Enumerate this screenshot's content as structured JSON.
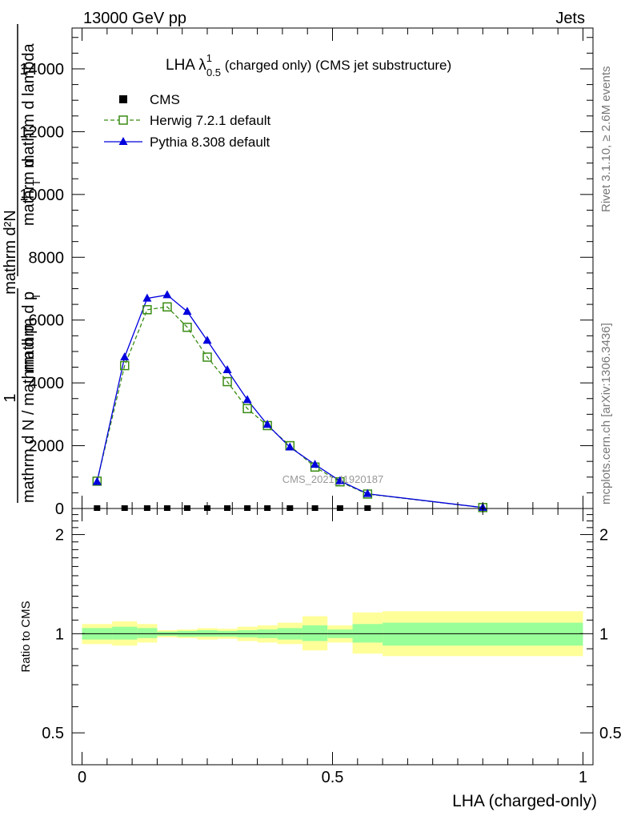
{
  "header": {
    "left": "13000 GeV pp",
    "right": "Jets"
  },
  "side_labels": {
    "rivet": "Rivet 3.1.10, ≥ 2.6M events",
    "mcplots": "mcplots.cern.ch [arXiv:1306.3436]"
  },
  "chart_data": [
    {
      "type": "line",
      "title_main": "LHA λ",
      "title_sup": "1",
      "title_sub": "0.5",
      "title_rest": " (charged only) (CMS jet substructure)",
      "ylabel_top": "1",
      "ylabel_overlap_1": "mathrm d",
      "ylabel_overlap_2": "N",
      "ylabel_overlap_3": "mathrm d p",
      "ylabel_overlap_4": "T",
      "ylabel_overlap_5": "mathrm d lambda",
      "ylabel_line1": "mathrm d N / mathrm d p",
      "ylabel_line1b": "T",
      "ylabel_line2": "mathrm d",
      "ylabel_line3": "mathrm d²N",
      "watermark": "CMS_2021_I1920187",
      "ylim": [
        0,
        15300
      ],
      "xlim": [
        -0.02,
        1.02
      ],
      "yticks": [
        0,
        2000,
        4000,
        6000,
        8000,
        10000,
        12000,
        14000
      ],
      "ytick_labels": [
        "0",
        "2000",
        "4000",
        "6000",
        "8000",
        "10000",
        "12000",
        "14000"
      ],
      "legend": [
        {
          "label": "CMS",
          "marker": "square-filled",
          "color": "#000000"
        },
        {
          "label": "Herwig 7.2.1 default",
          "marker": "square-open",
          "color": "#3a8c14"
        },
        {
          "label": "Pythia 8.308 default",
          "marker": "triangle",
          "color": "#0000dd"
        }
      ],
      "series": [
        {
          "name": "CMS",
          "x": [
            0.03,
            0.085,
            0.13,
            0.17,
            0.21,
            0.25,
            0.29,
            0.33,
            0.37,
            0.415,
            0.465,
            0.515,
            0.57
          ],
          "values": [
            0,
            0,
            0,
            0,
            0,
            0,
            0,
            0,
            0,
            0,
            0,
            0,
            0
          ]
        },
        {
          "name": "Herwig 7.2.1 default",
          "x": [
            0.03,
            0.085,
            0.13,
            0.17,
            0.21,
            0.25,
            0.29,
            0.33,
            0.37,
            0.415,
            0.465,
            0.515,
            0.57,
            0.8
          ],
          "values": [
            870,
            4550,
            6330,
            6420,
            5770,
            4820,
            4040,
            3180,
            2640,
            2000,
            1320,
            850,
            460,
            30
          ]
        },
        {
          "name": "Pythia 8.308 default",
          "x": [
            0.03,
            0.085,
            0.13,
            0.17,
            0.21,
            0.25,
            0.29,
            0.33,
            0.37,
            0.415,
            0.465,
            0.515,
            0.57,
            0.8
          ],
          "values": [
            850,
            4820,
            6690,
            6800,
            6270,
            5350,
            4410,
            3460,
            2670,
            1950,
            1400,
            880,
            470,
            30
          ]
        }
      ]
    },
    {
      "type": "area",
      "ylabel": "Ratio to CMS",
      "ylim": [
        0.4,
        2.4
      ],
      "log_scale": true,
      "yticks": [
        0.5,
        1,
        2
      ],
      "ytick_labels": [
        "0.5",
        "1",
        "2"
      ],
      "xlabel": "LHA (charged-only)",
      "xlim": [
        -0.02,
        1.02
      ],
      "xticks": [
        0,
        0.5,
        1
      ],
      "xtick_labels": [
        "0",
        "0.5",
        "1"
      ],
      "bins": [
        {
          "x_lo": 0.0,
          "x_hi": 0.06,
          "inner": [
            0.96,
            1.04
          ],
          "outer": [
            0.93,
            1.07
          ]
        },
        {
          "x_lo": 0.06,
          "x_hi": 0.11,
          "inner": [
            0.96,
            1.05
          ],
          "outer": [
            0.92,
            1.09
          ]
        },
        {
          "x_lo": 0.11,
          "x_hi": 0.15,
          "inner": [
            0.97,
            1.04
          ],
          "outer": [
            0.94,
            1.07
          ]
        },
        {
          "x_lo": 0.15,
          "x_hi": 0.19,
          "inner": [
            0.985,
            1.015
          ],
          "outer": [
            0.975,
            1.025
          ]
        },
        {
          "x_lo": 0.19,
          "x_hi": 0.23,
          "inner": [
            0.98,
            1.02
          ],
          "outer": [
            0.97,
            1.03
          ]
        },
        {
          "x_lo": 0.23,
          "x_hi": 0.27,
          "inner": [
            0.98,
            1.025
          ],
          "outer": [
            0.96,
            1.04
          ]
        },
        {
          "x_lo": 0.27,
          "x_hi": 0.31,
          "inner": [
            0.98,
            1.02
          ],
          "outer": [
            0.965,
            1.035
          ]
        },
        {
          "x_lo": 0.31,
          "x_hi": 0.35,
          "inner": [
            0.975,
            1.025
          ],
          "outer": [
            0.95,
            1.05
          ]
        },
        {
          "x_lo": 0.35,
          "x_hi": 0.39,
          "inner": [
            0.97,
            1.03
          ],
          "outer": [
            0.94,
            1.06
          ]
        },
        {
          "x_lo": 0.39,
          "x_hi": 0.44,
          "inner": [
            0.96,
            1.04
          ],
          "outer": [
            0.93,
            1.08
          ]
        },
        {
          "x_lo": 0.44,
          "x_hi": 0.49,
          "inner": [
            0.95,
            1.06
          ],
          "outer": [
            0.89,
            1.13
          ]
        },
        {
          "x_lo": 0.49,
          "x_hi": 0.54,
          "inner": [
            0.97,
            1.03
          ],
          "outer": [
            0.94,
            1.06
          ]
        },
        {
          "x_lo": 0.54,
          "x_hi": 0.6,
          "inner": [
            0.94,
            1.07
          ],
          "outer": [
            0.87,
            1.16
          ]
        },
        {
          "x_lo": 0.6,
          "x_hi": 1.0,
          "inner": [
            0.92,
            1.08
          ],
          "outer": [
            0.855,
            1.17
          ]
        }
      ],
      "inner_color": "#99ff99",
      "outer_color": "#ffff99"
    }
  ]
}
